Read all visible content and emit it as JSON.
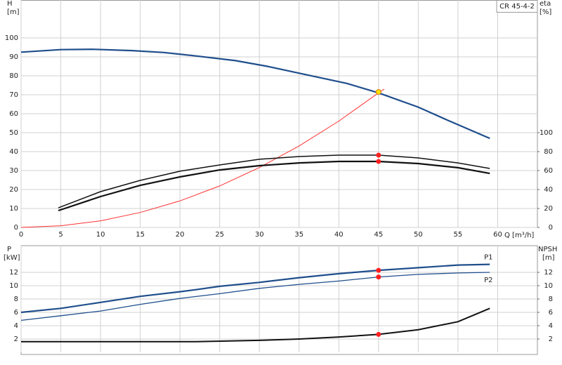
{
  "chart_data": [
    {
      "type": "line",
      "title": "CR 45-4-2",
      "y_label": "H",
      "y_unit": "[m]",
      "y2_label": "eta",
      "y2_unit": "[%]",
      "x_label": "Q [m³/h]",
      "xlim": [
        0,
        65
      ],
      "xticks": [
        0,
        5,
        10,
        15,
        20,
        25,
        30,
        35,
        40,
        45,
        50,
        55,
        60
      ],
      "ylim": [
        0,
        120
      ],
      "yticks": [
        0,
        10,
        20,
        30,
        40,
        50,
        60,
        70,
        80,
        90,
        100
      ],
      "y2lim": [
        0,
        240
      ],
      "y2ticks": [
        0,
        20,
        40,
        60,
        80,
        100
      ],
      "grid": true,
      "series": [
        {
          "color": "#1f4e8c",
          "width": 2.2,
          "x": [
            0,
            5,
            9,
            14,
            18,
            22,
            27,
            31,
            36,
            41,
            45,
            50,
            54,
            59
          ],
          "values": [
            92.5,
            93.8,
            94,
            93.3,
            92.3,
            90.5,
            88,
            85,
            80.5,
            76,
            71,
            63.5,
            56,
            47
          ]
        },
        {
          "color": "#ff3030",
          "width": 1,
          "x": [
            0,
            5,
            10,
            15,
            20,
            25,
            30,
            35,
            40,
            45,
            45.7
          ],
          "values": [
            0,
            0.9,
            3.5,
            7.9,
            14,
            21.9,
            31.6,
            43,
            56.1,
            71,
            73
          ]
        },
        {
          "color": "#111111",
          "width": 1.5,
          "axis": "y2",
          "x": [
            4.7,
            10,
            15,
            20,
            25,
            30,
            35,
            40,
            45,
            50,
            55,
            59
          ],
          "values": [
            20.7,
            37.8,
            49.6,
            59.3,
            65.9,
            71.9,
            74.8,
            76.3,
            76.3,
            73.3,
            68.1,
            62.2
          ]
        },
        {
          "color": "#111111",
          "width": 2.2,
          "axis": "y2",
          "x": [
            4.7,
            10,
            15,
            20,
            25,
            30,
            35,
            40,
            45,
            50,
            55,
            59
          ],
          "values": [
            17.8,
            32.6,
            44.4,
            53.3,
            60.7,
            65.2,
            68.1,
            69.6,
            69.6,
            67.4,
            63.0,
            57.0
          ]
        }
      ],
      "markers": [
        {
          "x": 45,
          "y": 71.5,
          "color": "#ffe000"
        },
        {
          "x": 45,
          "y": 76.3,
          "color": "#ff2020",
          "axis": "y2"
        },
        {
          "x": 45,
          "y": 69.6,
          "color": "#ff2020",
          "axis": "y2"
        }
      ]
    },
    {
      "type": "line",
      "y_label": "P",
      "y_unit": "[kW]",
      "y2_label": "NPSH",
      "y2_unit": "[m]",
      "xlim": [
        0,
        65
      ],
      "ylim": [
        0,
        16
      ],
      "yticks": [
        2,
        4,
        6,
        8,
        10,
        12
      ],
      "y2lim": [
        0,
        16
      ],
      "y2ticks": [
        2,
        4,
        6,
        8,
        10,
        12
      ],
      "grid": true,
      "series": [
        {
          "name": "P1",
          "color": "#1f4e8c",
          "width": 2.2,
          "x": [
            0,
            5,
            10,
            15,
            20,
            22,
            25,
            30,
            35,
            40,
            45,
            50,
            55,
            59
          ],
          "values": [
            6.0,
            6.6,
            7.5,
            8.4,
            9.1,
            9.4,
            9.9,
            10.5,
            11.2,
            11.8,
            12.3,
            12.7,
            13.1,
            13.2
          ]
        },
        {
          "name": "P2",
          "color": "#1f4e8c",
          "width": 1.3,
          "x": [
            0,
            5,
            10,
            15,
            20,
            25,
            30,
            35,
            40,
            45,
            50,
            55,
            59
          ],
          "values": [
            4.8,
            5.5,
            6.2,
            7.2,
            8.1,
            8.8,
            9.6,
            10.2,
            10.7,
            11.3,
            11.7,
            11.9,
            12.0
          ]
        },
        {
          "color": "#111111",
          "width": 2,
          "axis": "y2",
          "x": [
            0,
            10,
            22,
            30,
            35,
            40,
            45,
            50,
            55,
            59
          ],
          "values": [
            1.6,
            1.6,
            1.6,
            1.8,
            2.0,
            2.3,
            2.7,
            3.4,
            4.6,
            6.6
          ]
        }
      ],
      "markers": [
        {
          "x": 45,
          "y": 12.3,
          "color": "#ff2020"
        },
        {
          "x": 45,
          "y": 11.3,
          "color": "#ff2020"
        },
        {
          "x": 45,
          "y": 2.7,
          "color": "#ff2020",
          "axis": "y2"
        }
      ]
    }
  ]
}
